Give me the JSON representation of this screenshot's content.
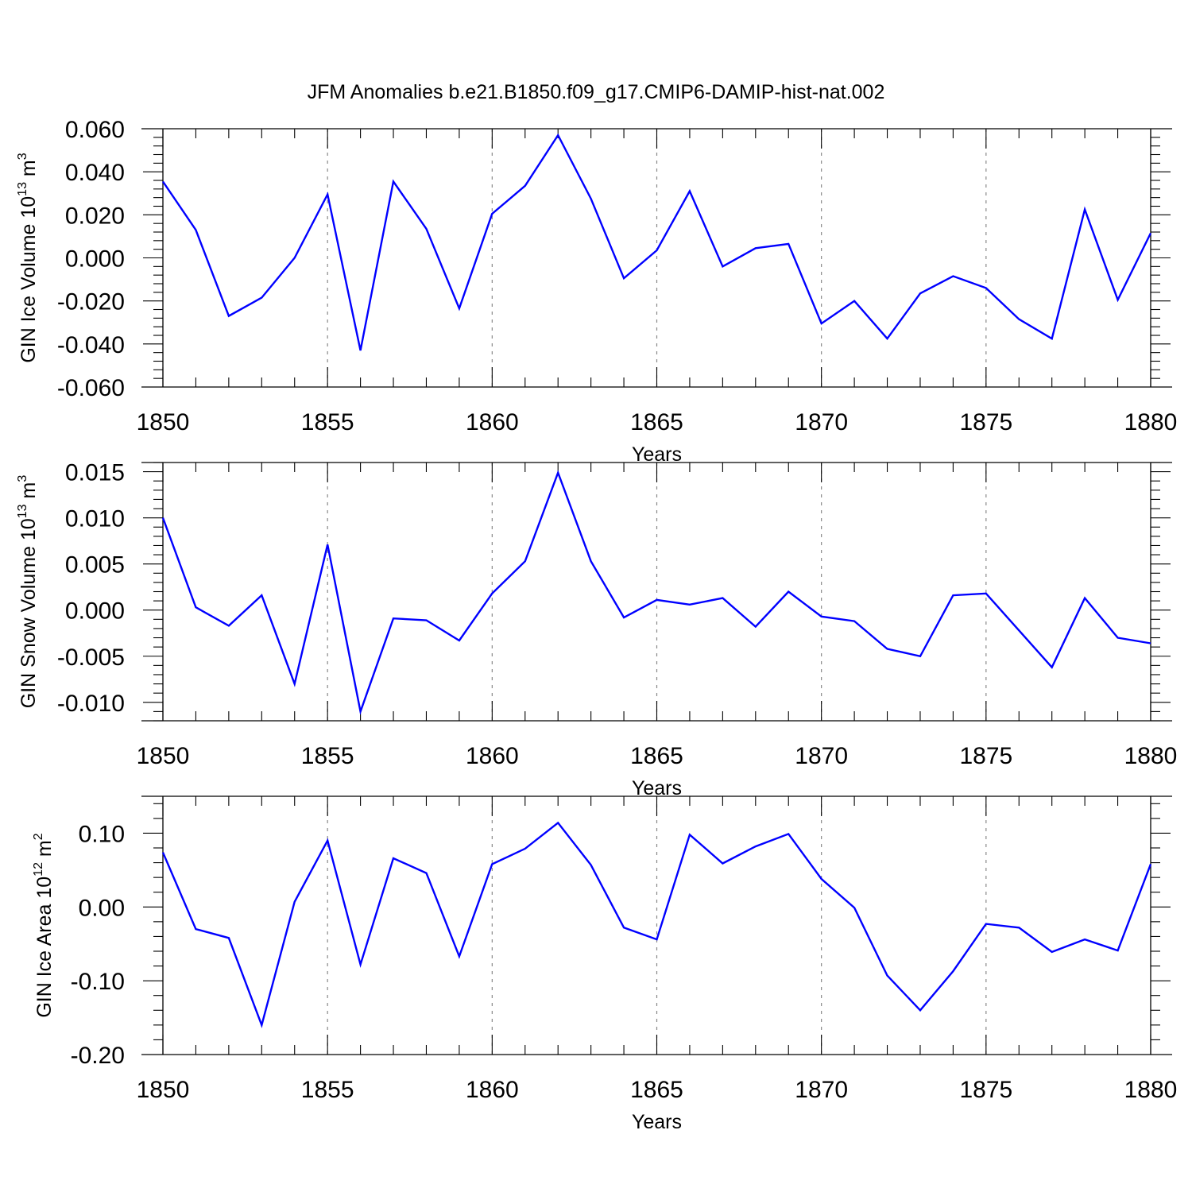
{
  "figure_title": "JFM Anomalies b.e21.B1850.f09_g17.CMIP6-DAMIP-hist-nat.002",
  "line_color": "#0000ff",
  "chart_data": [
    {
      "type": "line",
      "title": "JFM Anomalies b.e21.B1850.f09_g17.CMIP6-DAMIP-hist-nat.002",
      "xlabel": "Years",
      "ylabel": "GIN Ice Volume 10",
      "ylabel_exp": "13",
      "ylabel_unit": " m",
      "ylabel_unit_exp": "3",
      "xlim": [
        1850,
        1880
      ],
      "ylim": [
        -0.06,
        0.06
      ],
      "xticks": [
        1850,
        1855,
        1860,
        1865,
        1870,
        1875,
        1880
      ],
      "xtick_labels": [
        "1850",
        "1855",
        "1860",
        "1865",
        "1870",
        "1875",
        "1880"
      ],
      "yticks": [
        0.06,
        0.04,
        0.02,
        0.0,
        -0.02,
        -0.04,
        -0.06
      ],
      "ytick_labels": [
        "0.060",
        "0.040",
        "0.020",
        "0.000",
        "-0.020",
        "-0.040",
        "-0.060"
      ],
      "grid": "dashed vertical at major x ticks",
      "x": [
        1850,
        1851,
        1852,
        1853,
        1854,
        1855,
        1856,
        1857,
        1858,
        1859,
        1860,
        1861,
        1862,
        1863,
        1864,
        1865,
        1866,
        1867,
        1868,
        1869,
        1870,
        1871,
        1872,
        1873,
        1874,
        1875,
        1876,
        1877,
        1878,
        1879,
        1880
      ],
      "series": [
        {
          "name": "GIN Ice Volume",
          "values": [
            0.0355,
            0.013,
            -0.027,
            -0.0185,
            0.0,
            0.0295,
            -0.043,
            0.0355,
            0.0135,
            -0.0235,
            0.0205,
            0.0335,
            0.057,
            0.0275,
            -0.0095,
            0.0035,
            0.031,
            -0.004,
            0.0045,
            0.0065,
            -0.0305,
            -0.02,
            -0.0375,
            -0.0165,
            -0.0085,
            -0.014,
            -0.0285,
            -0.0375,
            0.0225,
            -0.0195,
            0.0115
          ]
        }
      ]
    },
    {
      "type": "line",
      "xlabel": "Years",
      "ylabel": "GIN Snow Volume 10",
      "ylabel_exp": "13",
      "ylabel_unit": " m",
      "ylabel_unit_exp": "3",
      "xlim": [
        1850,
        1880
      ],
      "ylim": [
        -0.012,
        0.016
      ],
      "xticks": [
        1850,
        1855,
        1860,
        1865,
        1870,
        1875,
        1880
      ],
      "xtick_labels": [
        "1850",
        "1855",
        "1860",
        "1865",
        "1870",
        "1875",
        "1880"
      ],
      "yticks": [
        0.015,
        0.01,
        0.005,
        0.0,
        -0.005,
        -0.01
      ],
      "ytick_labels": [
        "0.015",
        "0.010",
        "0.005",
        "0.000",
        "-0.005",
        "-0.010"
      ],
      "grid": "dashed vertical at major x ticks",
      "x": [
        1850,
        1851,
        1852,
        1853,
        1854,
        1855,
        1856,
        1857,
        1858,
        1859,
        1860,
        1861,
        1862,
        1863,
        1864,
        1865,
        1866,
        1867,
        1868,
        1869,
        1870,
        1871,
        1872,
        1873,
        1874,
        1875,
        1876,
        1877,
        1878,
        1879,
        1880
      ],
      "series": [
        {
          "name": "GIN Snow Volume",
          "values": [
            0.01,
            0.0003,
            -0.0017,
            0.0016,
            -0.008,
            0.0071,
            -0.011,
            -0.0009,
            -0.0011,
            -0.0033,
            0.0018,
            0.0053,
            0.0149,
            0.0053,
            -0.0008,
            0.0011,
            0.0006,
            0.0013,
            -0.0018,
            0.002,
            -0.0007,
            -0.0012,
            -0.0042,
            -0.005,
            0.0016,
            0.0018,
            -0.0022,
            -0.0062,
            0.0013,
            -0.003,
            -0.0036
          ]
        }
      ]
    },
    {
      "type": "line",
      "xlabel": "Years",
      "ylabel": "GIN Ice Area 10",
      "ylabel_exp": "12",
      "ylabel_unit": " m",
      "ylabel_unit_exp": "2",
      "xlim": [
        1850,
        1880
      ],
      "ylim": [
        -0.2,
        0.15
      ],
      "xticks": [
        1850,
        1855,
        1860,
        1865,
        1870,
        1875,
        1880
      ],
      "xtick_labels": [
        "1850",
        "1855",
        "1860",
        "1865",
        "1870",
        "1875",
        "1880"
      ],
      "yticks": [
        0.1,
        0.0,
        -0.1,
        -0.2
      ],
      "ytick_labels": [
        "0.10",
        "0.00",
        "-0.10",
        "-0.20"
      ],
      "grid": "dashed vertical at major x ticks",
      "x": [
        1850,
        1851,
        1852,
        1853,
        1854,
        1855,
        1856,
        1857,
        1858,
        1859,
        1860,
        1861,
        1862,
        1863,
        1864,
        1865,
        1866,
        1867,
        1868,
        1869,
        1870,
        1871,
        1872,
        1873,
        1874,
        1875,
        1876,
        1877,
        1878,
        1879,
        1880
      ],
      "series": [
        {
          "name": "GIN Ice Area",
          "values": [
            0.074,
            -0.03,
            -0.042,
            -0.16,
            0.007,
            0.09,
            -0.078,
            0.066,
            0.046,
            -0.067,
            0.058,
            0.079,
            0.114,
            0.057,
            -0.028,
            -0.044,
            0.098,
            0.059,
            0.082,
            0.099,
            0.038,
            -0.001,
            -0.093,
            -0.14,
            -0.087,
            -0.023,
            -0.028,
            -0.061,
            -0.044,
            -0.059,
            0.058
          ]
        }
      ]
    }
  ]
}
